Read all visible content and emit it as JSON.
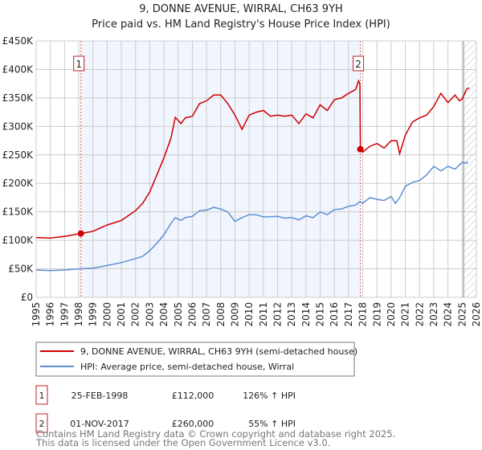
{
  "chart_data": {
    "type": "line",
    "title": "9, DONNE AVENUE, WIRRAL, CH63 9YH",
    "subtitle": "Price paid vs. HM Land Registry's House Price Index (HPI)",
    "xlim": [
      1995,
      2026
    ],
    "ylim": [
      0,
      450000
    ],
    "grid": true,
    "x_ticks": [
      "1995",
      "1996",
      "1997",
      "1998",
      "1999",
      "2000",
      "2001",
      "2002",
      "2003",
      "2004",
      "2005",
      "2006",
      "2007",
      "2008",
      "2009",
      "2010",
      "2011",
      "2012",
      "2013",
      "2014",
      "2015",
      "2016",
      "2017",
      "2018",
      "2019",
      "2020",
      "2021",
      "2022",
      "2023",
      "2024",
      "2025",
      "2026"
    ],
    "y_ticks": [
      {
        "v": 0,
        "label": "£0"
      },
      {
        "v": 50000,
        "label": "£50K"
      },
      {
        "v": 100000,
        "label": "£100K"
      },
      {
        "v": 150000,
        "label": "£150K"
      },
      {
        "v": 200000,
        "label": "£200K"
      },
      {
        "v": 250000,
        "label": "£250K"
      },
      {
        "v": 300000,
        "label": "£300K"
      },
      {
        "v": 350000,
        "label": "£350K"
      },
      {
        "v": 400000,
        "label": "£400K"
      },
      {
        "v": 450000,
        "label": "£450K"
      }
    ],
    "shaded_range": [
      1998.15,
      2017.83
    ],
    "forecast_from": 2025.1,
    "series": [
      {
        "name": "9, DONNE AVENUE, WIRRAL, CH63 9YH (semi-detached house)",
        "color": "#cc0000",
        "x": [
          1995,
          1996,
          1997,
          1998.15,
          1999,
          2000,
          2001,
          2002,
          2002.5,
          2003,
          2003.5,
          2004,
          2004.5,
          2004.8,
          2005.2,
          2005.5,
          2006,
          2006.5,
          2007,
          2007.5,
          2008,
          2008.5,
          2009,
          2009.5,
          2010,
          2010.5,
          2011,
          2011.5,
          2012,
          2012.5,
          2013,
          2013.5,
          2014,
          2014.5,
          2015,
          2015.5,
          2016,
          2016.5,
          2017,
          2017.5,
          2017.7,
          2017.8,
          2017.83,
          2018,
          2018.5,
          2019,
          2019.5,
          2020,
          2020.4,
          2020.6,
          2021,
          2021.5,
          2022,
          2022.5,
          2023,
          2023.5,
          2024,
          2024.5,
          2024.8,
          2025,
          2025.3,
          2025.5
        ],
        "y": [
          105000,
          104000,
          107000,
          112000,
          116000,
          127000,
          135000,
          152000,
          165000,
          185000,
          215000,
          245000,
          280000,
          316000,
          305000,
          315000,
          318000,
          340000,
          345000,
          355000,
          355000,
          340000,
          320000,
          295000,
          320000,
          325000,
          328000,
          318000,
          320000,
          318000,
          320000,
          305000,
          322000,
          315000,
          338000,
          328000,
          347000,
          350000,
          358000,
          365000,
          380000,
          375000,
          260000,
          255000,
          265000,
          270000,
          262000,
          275000,
          275000,
          252000,
          285000,
          308000,
          315000,
          320000,
          335000,
          358000,
          342000,
          355000,
          345000,
          348000,
          365000,
          368000
        ]
      },
      {
        "name": "HPI: Average price, semi-detached house, Wirral",
        "color": "#5b8fd4",
        "x": [
          1995,
          1996,
          1997,
          1998,
          1999,
          2000,
          2001,
          2002,
          2002.5,
          2003,
          2003.5,
          2004,
          2004.5,
          2004.8,
          2005.2,
          2005.5,
          2006,
          2006.5,
          2007,
          2007.5,
          2008,
          2008.5,
          2009,
          2009.5,
          2010,
          2010.5,
          2011,
          2012,
          2012.5,
          2013,
          2013.5,
          2014,
          2014.5,
          2015,
          2015.5,
          2016,
          2016.5,
          2017,
          2017.5,
          2017.8,
          2018,
          2018.5,
          2019,
          2019.5,
          2020,
          2020.3,
          2020.6,
          2021,
          2021.5,
          2022,
          2022.5,
          2023,
          2023.5,
          2024,
          2024.5,
          2025,
          2025.3,
          2025.4
        ],
        "y": [
          48000,
          47000,
          48000,
          50000,
          51000,
          56000,
          61000,
          68000,
          72000,
          82000,
          95000,
          110000,
          130000,
          140000,
          135000,
          140000,
          142000,
          152000,
          153000,
          158000,
          155000,
          150000,
          133000,
          140000,
          145000,
          145000,
          141000,
          142000,
          139000,
          140000,
          136000,
          143000,
          140000,
          150000,
          145000,
          154000,
          155000,
          160000,
          162000,
          168000,
          165000,
          175000,
          172000,
          170000,
          177000,
          165000,
          175000,
          195000,
          202000,
          205000,
          215000,
          230000,
          222000,
          230000,
          225000,
          237000,
          235000,
          238000
        ]
      }
    ],
    "sales": [
      {
        "num": "1",
        "x": 1998.15,
        "y": 112000,
        "date": "25-FEB-1998",
        "price": "£112,000",
        "hpi": "126% ↑ HPI"
      },
      {
        "num": "2",
        "x": 2017.83,
        "y": 260000,
        "date": "01-NOV-2017",
        "price": "£260,000",
        "hpi": "55% ↑ HPI"
      }
    ]
  },
  "footer": {
    "line1": "Contains HM Land Registry data © Crown copyright and database right 2025.",
    "line2": "This data is licensed under the Open Government Licence v3.0."
  }
}
